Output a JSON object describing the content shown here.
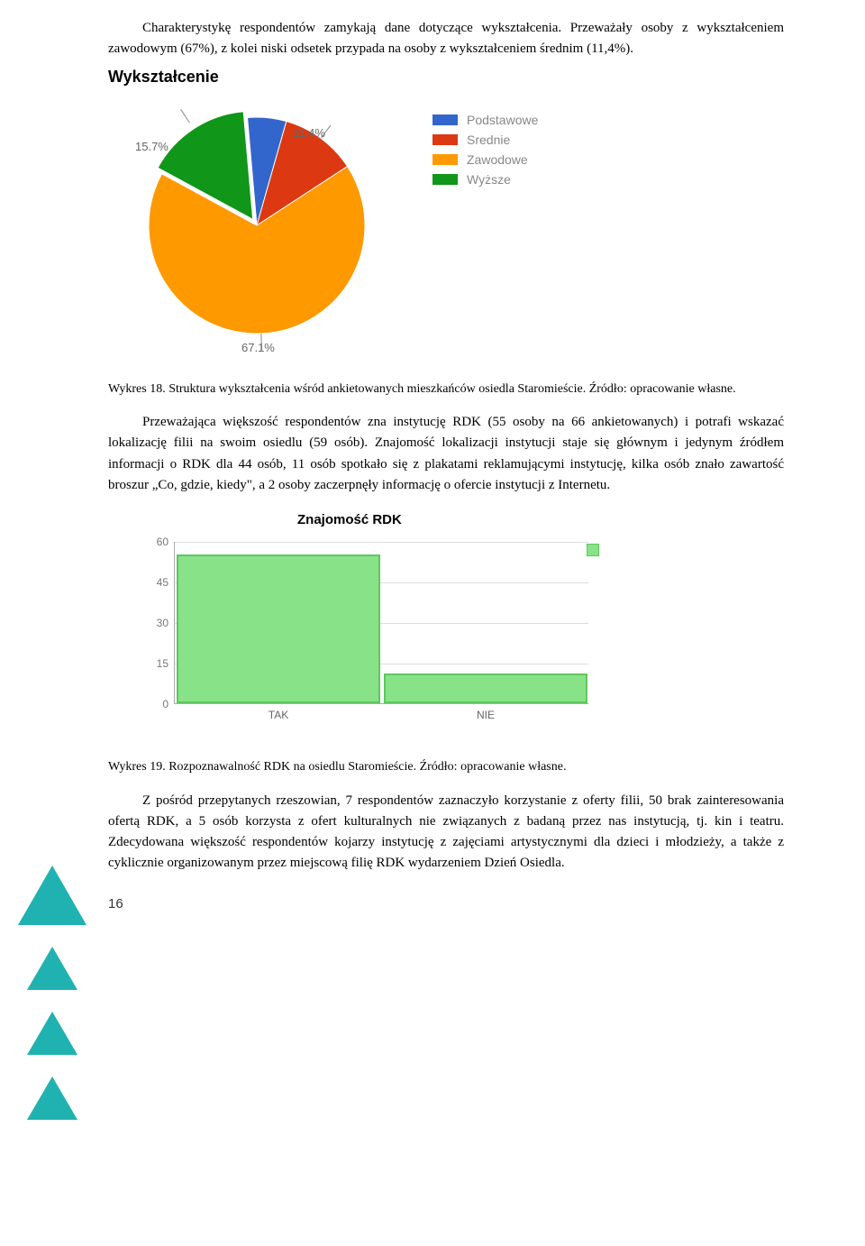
{
  "para1": "Charakterystykę respondentów zamykają dane dotyczące wykształcenia. Przeważały osoby z wykształceniem zawodowym (67%), z kolei niski odsetek przypada na osoby z wykształceniem średnim (11,4%).",
  "pie": {
    "title": "Wykształcenie",
    "labels": [
      "11.4%",
      "15.7%",
      "67.1%"
    ],
    "slices": [
      {
        "name": "Podstawowe",
        "value": 5.8,
        "color": "#3366cc"
      },
      {
        "name": "Srednie",
        "value": 11.4,
        "color": "#dc3912"
      },
      {
        "name": "Zawodowe",
        "value": 67.1,
        "color": "#ff9900"
      },
      {
        "name": "Wyższe",
        "value": 15.7,
        "color": "#109618"
      }
    ],
    "label_color": "#666",
    "label_fontsize": 13
  },
  "caption1": "Wykres 18. Struktura wykształcenia wśród ankietowanych mieszkańców osiedla Staromieście. Źródło: opracowanie własne.",
  "para2": "Przeważająca większość respondentów zna instytucję RDK (55 osoby na 66 ankietowanych) i potrafi wskazać lokalizację filii na swoim osiedlu (59 osób). Znajomość lokalizacji instytucji staje się głównym i jedynym źródłem informacji o RDK dla 44 osób, 11 osób spotkało się z plakatami reklamującymi instytucję, kilka osób znało zawartość broszur „Co, gdzie, kiedy\", a 2 osoby zaczerpnęły informację o ofercie instytucji z Internetu.",
  "bar": {
    "title": "Znajomość RDK",
    "ylim": [
      0,
      60
    ],
    "ytick_step": 15,
    "yticks": [
      0,
      15,
      30,
      45,
      60
    ],
    "categories": [
      "TAK",
      "NIE"
    ],
    "values": [
      55,
      11
    ],
    "bar_color": "#88e288",
    "bar_border": "#5fc75f",
    "grid_color": "#ddd"
  },
  "caption2": "Wykres 19. Rozpoznawalność RDK na osiedlu Staromieście. Źródło: opracowanie własne.",
  "para3": "Z pośród przepytanych rzeszowian, 7 respondentów zaznaczyło korzystanie z oferty filii, 50 brak zainteresowania ofertą RDK, a 5 osób korzysta z ofert kulturalnych nie związanych z badaną przez nas instytucją, tj. kin i teatru. Zdecydowana większość respondentów kojarzy instytucję z zajęciami artystycznymi dla dzieci i młodzieży, a także z cyklicznie organizowanym przez miejscową filię RDK wydarzeniem Dzień Osiedla.",
  "page_number": "16",
  "triangles_color": "#1fb2b0"
}
